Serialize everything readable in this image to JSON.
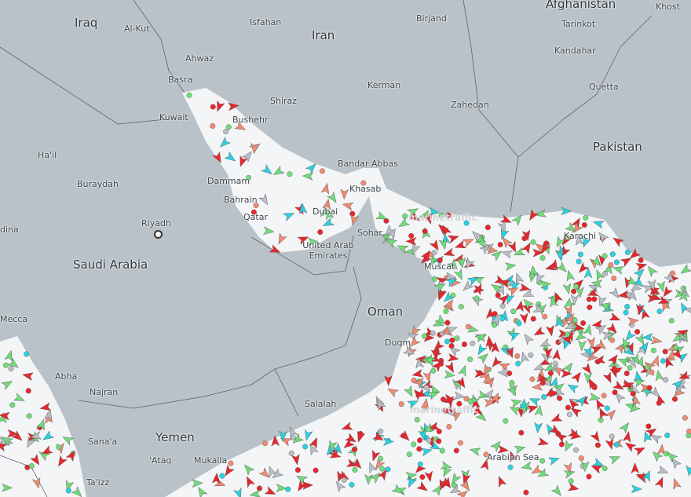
{
  "map": {
    "land_color": "#b9c2c8",
    "sea_color": "#f4f5f7",
    "border_color": "#5c646b",
    "watermark": "marinetraffic",
    "labels": {
      "countries": [
        "Iraq",
        "Iran",
        "Afghanistan",
        "Pakistan",
        "Saudi Arabia",
        "Oman",
        "Yemen",
        "United Arab Emirates"
      ],
      "cities": [
        "Al-Kut",
        "Isfahan",
        "Birjand",
        "Tarinkot",
        "Khost",
        "Kandahar",
        "Quetta",
        "Ahwaz",
        "Basra",
        "Kuwait",
        "Bushehr",
        "Shiraz",
        "Kerman",
        "Zahedan",
        "Ha'il",
        "Buraydah",
        "Dammam",
        "Bahrain",
        "Qatar",
        "Bandar Abbas",
        "Khasab",
        "Dubai",
        "Riyadh",
        "Sohar",
        "Muscat",
        "Karachi",
        "Duqm",
        "Salalah",
        "Sana'a",
        "Abha",
        "Najran",
        "'Ataq",
        "Mukalla",
        "Ta'izz",
        "Mecca",
        "dina",
        "Arabian Sea"
      ]
    },
    "vessel_colors": {
      "tanker": "#e8262c",
      "cargo": "#6fdc7a",
      "passenger": "#2ad2e0",
      "fishing": "#f08a70",
      "pleasure": "#c53fe0",
      "unknown": "#b8bec4",
      "tug": "#3c7ee0"
    }
  }
}
